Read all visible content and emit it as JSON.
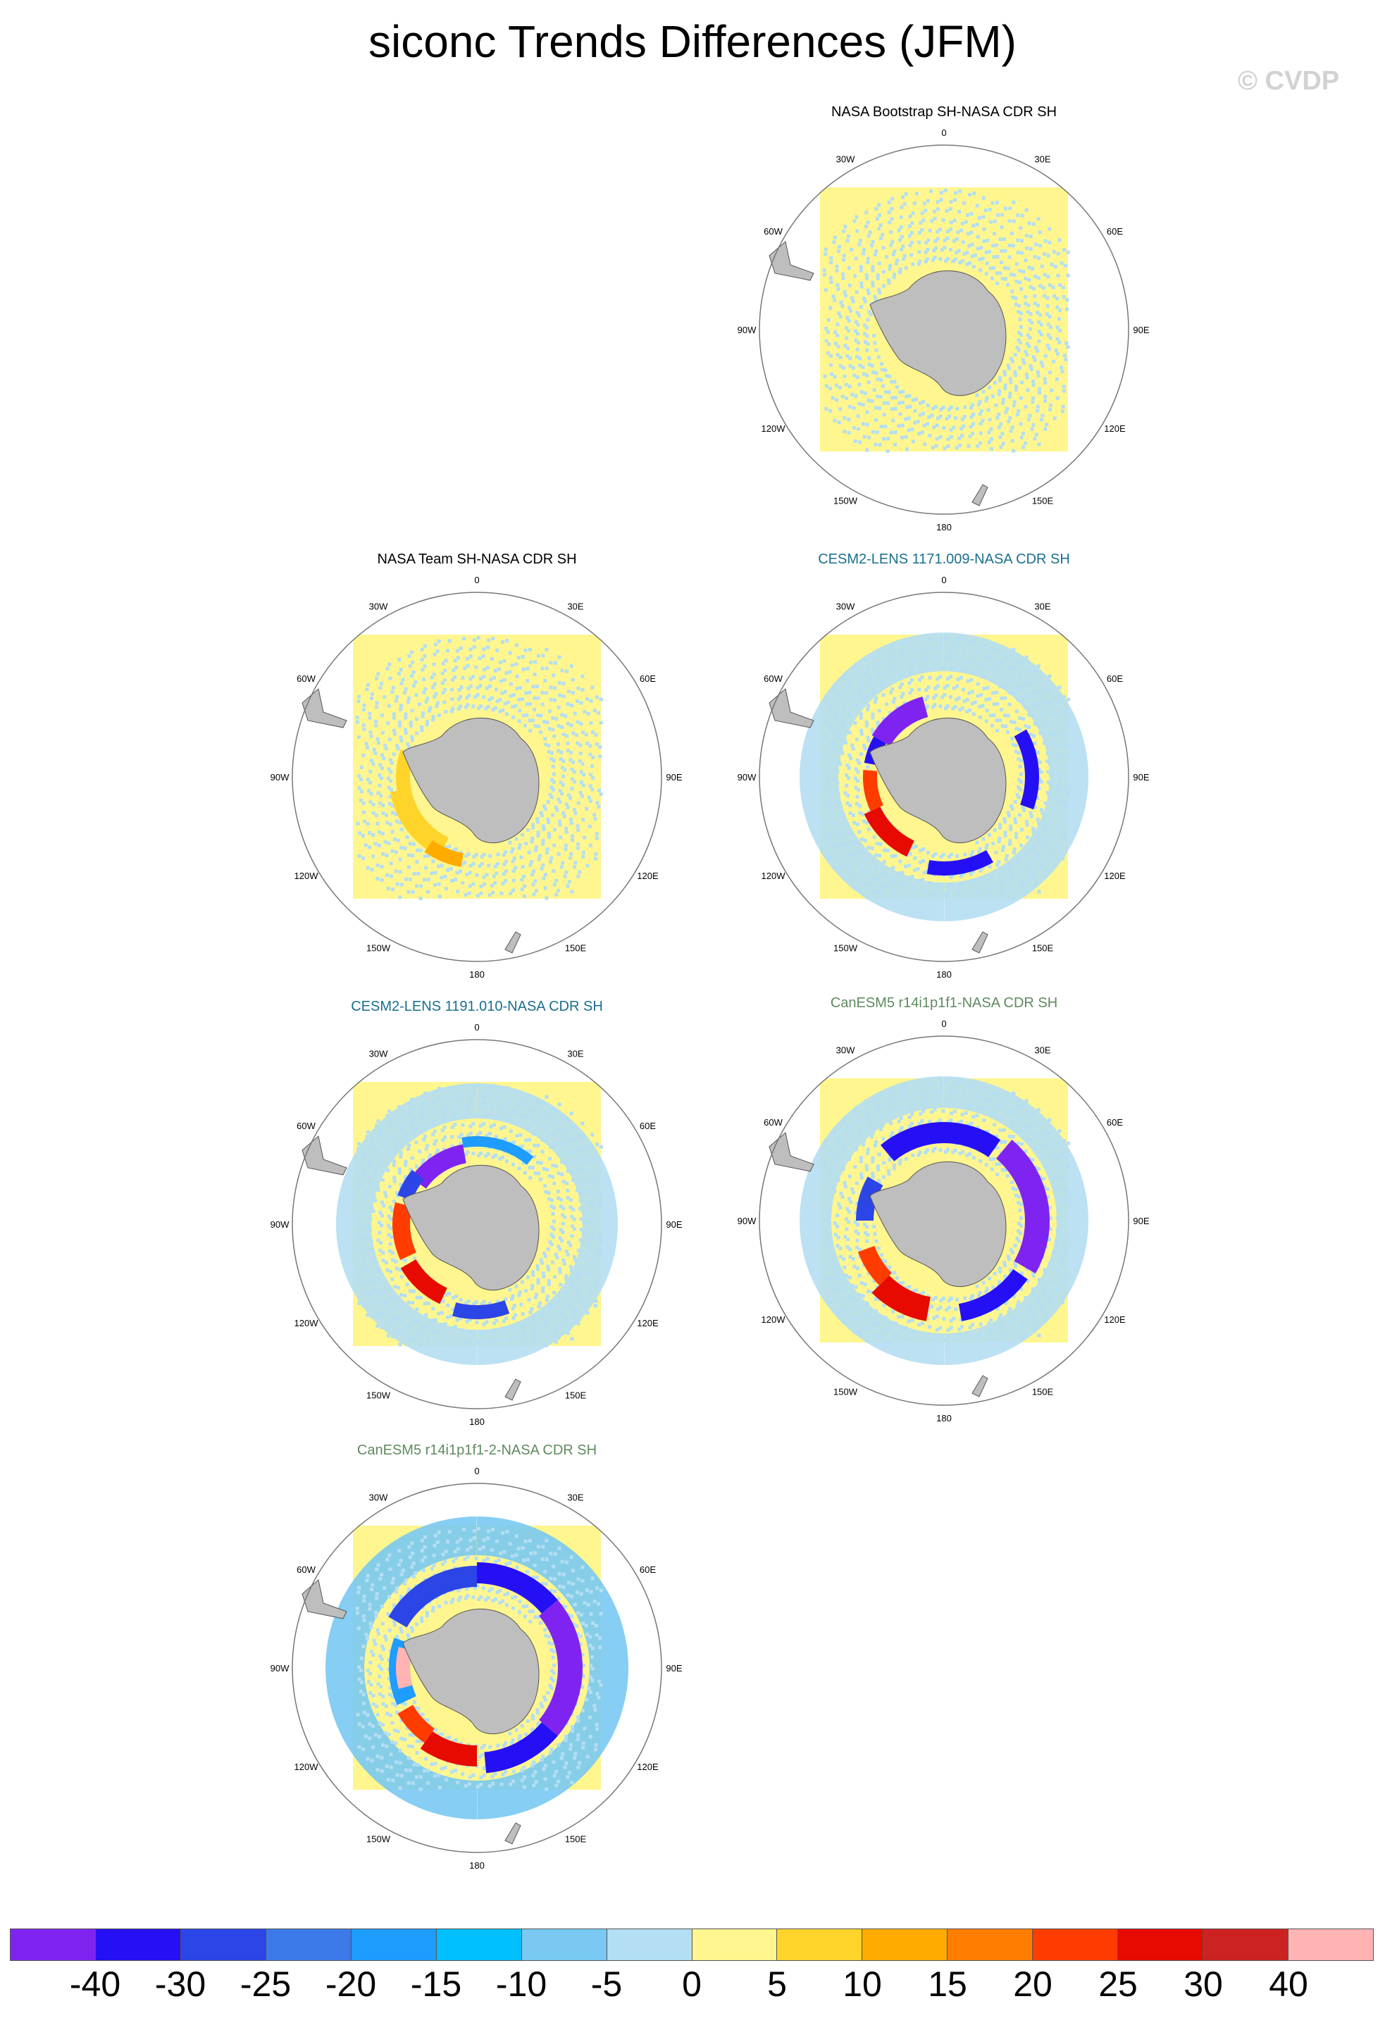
{
  "title": "siconc Trends Differences (JFM)",
  "watermark": "© CVDP",
  "graticule_labels": [
    "0",
    "30E",
    "60E",
    "90E",
    "120E",
    "150E",
    "180",
    "150W",
    "120W",
    "90W",
    "60W",
    "30W"
  ],
  "panels": [
    {
      "title": "NASA Bootstrap SH-NASA CDR SH",
      "title_color": "#000000",
      "pattern": "bootstrap"
    },
    {
      "title": "NASA Team SH-NASA CDR SH",
      "title_color": "#000000",
      "pattern": "team"
    },
    {
      "title": "CESM2-LENS 1171.009-NASA CDR SH",
      "title_color": "#1a6f8f",
      "pattern": "cesm1"
    },
    {
      "title": "CESM2-LENS 1191.010-NASA CDR SH",
      "title_color": "#1a6f8f",
      "pattern": "cesm2"
    },
    {
      "title": "CanESM5 r14i1p1f1-NASA CDR SH",
      "title_color": "#5f8a5f",
      "pattern": "canesm1"
    },
    {
      "title": "CanESM5 r14i1p1f1-2-NASA CDR SH",
      "title_color": "#5f8a5f",
      "pattern": "canesm2"
    }
  ],
  "colorbar": {
    "colors": [
      "#7f24f0",
      "#2510f5",
      "#2b45e6",
      "#3b7ae8",
      "#1e9cff",
      "#00c0ff",
      "#79c9f2",
      "#b4def2",
      "#fff68f",
      "#ffd42a",
      "#ffab00",
      "#ff7d00",
      "#ff3c00",
      "#e60a00",
      "#cc2222",
      "#ffb3b3"
    ],
    "labels": [
      "-40",
      "-30",
      "-25",
      "-20",
      "-15",
      "-10",
      "-5",
      "0",
      "5",
      "10",
      "15",
      "20",
      "25",
      "30",
      "40"
    ]
  }
}
